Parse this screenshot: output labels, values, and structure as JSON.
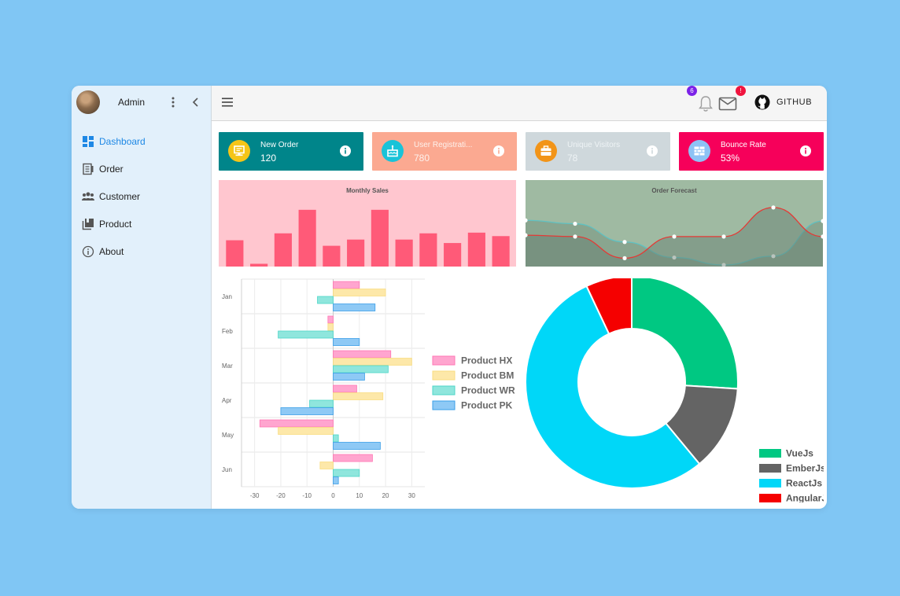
{
  "sidebar": {
    "user": "Admin",
    "items": [
      {
        "label": "Dashboard",
        "icon": "dashboard-icon",
        "active": true
      },
      {
        "label": "Order",
        "icon": "order-icon",
        "active": false
      },
      {
        "label": "Customer",
        "icon": "customer-icon",
        "active": false
      },
      {
        "label": "Product",
        "icon": "product-icon",
        "active": false
      },
      {
        "label": "About",
        "icon": "info-icon",
        "active": false
      }
    ]
  },
  "topbar": {
    "notifications_count": "6",
    "mail_badge": "!",
    "github_label": "GITHUB"
  },
  "cards": [
    {
      "title": "New Order",
      "value": "120",
      "bg": "#00858a",
      "icon_bg": "#f5c518",
      "text": "#ffffff"
    },
    {
      "title": "User Registrati...",
      "value": "780",
      "bg": "#fba991",
      "icon_bg": "#19c3d8",
      "text": "#fdf1ec"
    },
    {
      "title": "Unique Visitors",
      "value": "78",
      "bg": "#cfd8dc",
      "icon_bg": "#f29418",
      "text": "#eef3f5"
    },
    {
      "title": "Bounce Rate",
      "value": "53%",
      "bg": "#f6005a",
      "icon_bg": "#8ec2f5",
      "text": "#ffffff"
    }
  ],
  "chart_data": [
    {
      "type": "bar",
      "title": "Monthly Sales",
      "values": [
        38,
        4,
        48,
        82,
        30,
        39,
        82,
        39,
        48,
        34,
        49,
        44
      ],
      "ylim": [
        0,
        100
      ],
      "color": "#ff5a78",
      "background": "#ffc6cf"
    },
    {
      "type": "area",
      "title": "Order Forecast",
      "series": [
        {
          "values": [
            66,
            61,
            34,
            11,
            0,
            13,
            65
          ],
          "color": "#5fc1c2"
        },
        {
          "values": [
            44,
            42,
            10,
            42,
            42,
            85,
            42
          ],
          "color": "#e53935"
        }
      ],
      "ylim": [
        0,
        100
      ],
      "background": "#9fbaa2"
    },
    {
      "type": "bar",
      "orientation": "horizontal",
      "categories": [
        "Jan",
        "Feb",
        "Mar",
        "Apr",
        "May",
        "Jun"
      ],
      "xlim": [
        -35,
        35
      ],
      "ticks": [
        "-30",
        "-20",
        "-10",
        "0",
        "10",
        "20",
        "30"
      ],
      "legend_position": "right",
      "series": [
        {
          "name": "Product HX",
          "color": "#ff77b4",
          "fill": "#ffa5cf",
          "values": [
            10,
            -2,
            22,
            9,
            -28,
            15
          ]
        },
        {
          "name": "Product BM",
          "color": "#f9dd81",
          "fill": "#fde8a9",
          "values": [
            20,
            -2,
            30,
            19,
            -21,
            -5
          ]
        },
        {
          "name": "Product WR",
          "color": "#4dd6c8",
          "fill": "#8fe6dd",
          "values": [
            -6,
            -21,
            21,
            -9,
            2,
            10
          ]
        },
        {
          "name": "Product PK",
          "color": "#3b9fe8",
          "fill": "#8ec9f5",
          "values": [
            16,
            10,
            12,
            -20,
            18,
            2
          ]
        }
      ]
    },
    {
      "type": "pie",
      "variant": "doughnut",
      "legend_position": "right",
      "labels": [
        "VueJs",
        "EmberJs",
        "ReactJs",
        "AngularJs"
      ],
      "values": [
        26,
        13,
        54,
        7
      ],
      "colors": [
        "#00c882",
        "#646464",
        "#00d7f8",
        "#f50000"
      ]
    }
  ]
}
